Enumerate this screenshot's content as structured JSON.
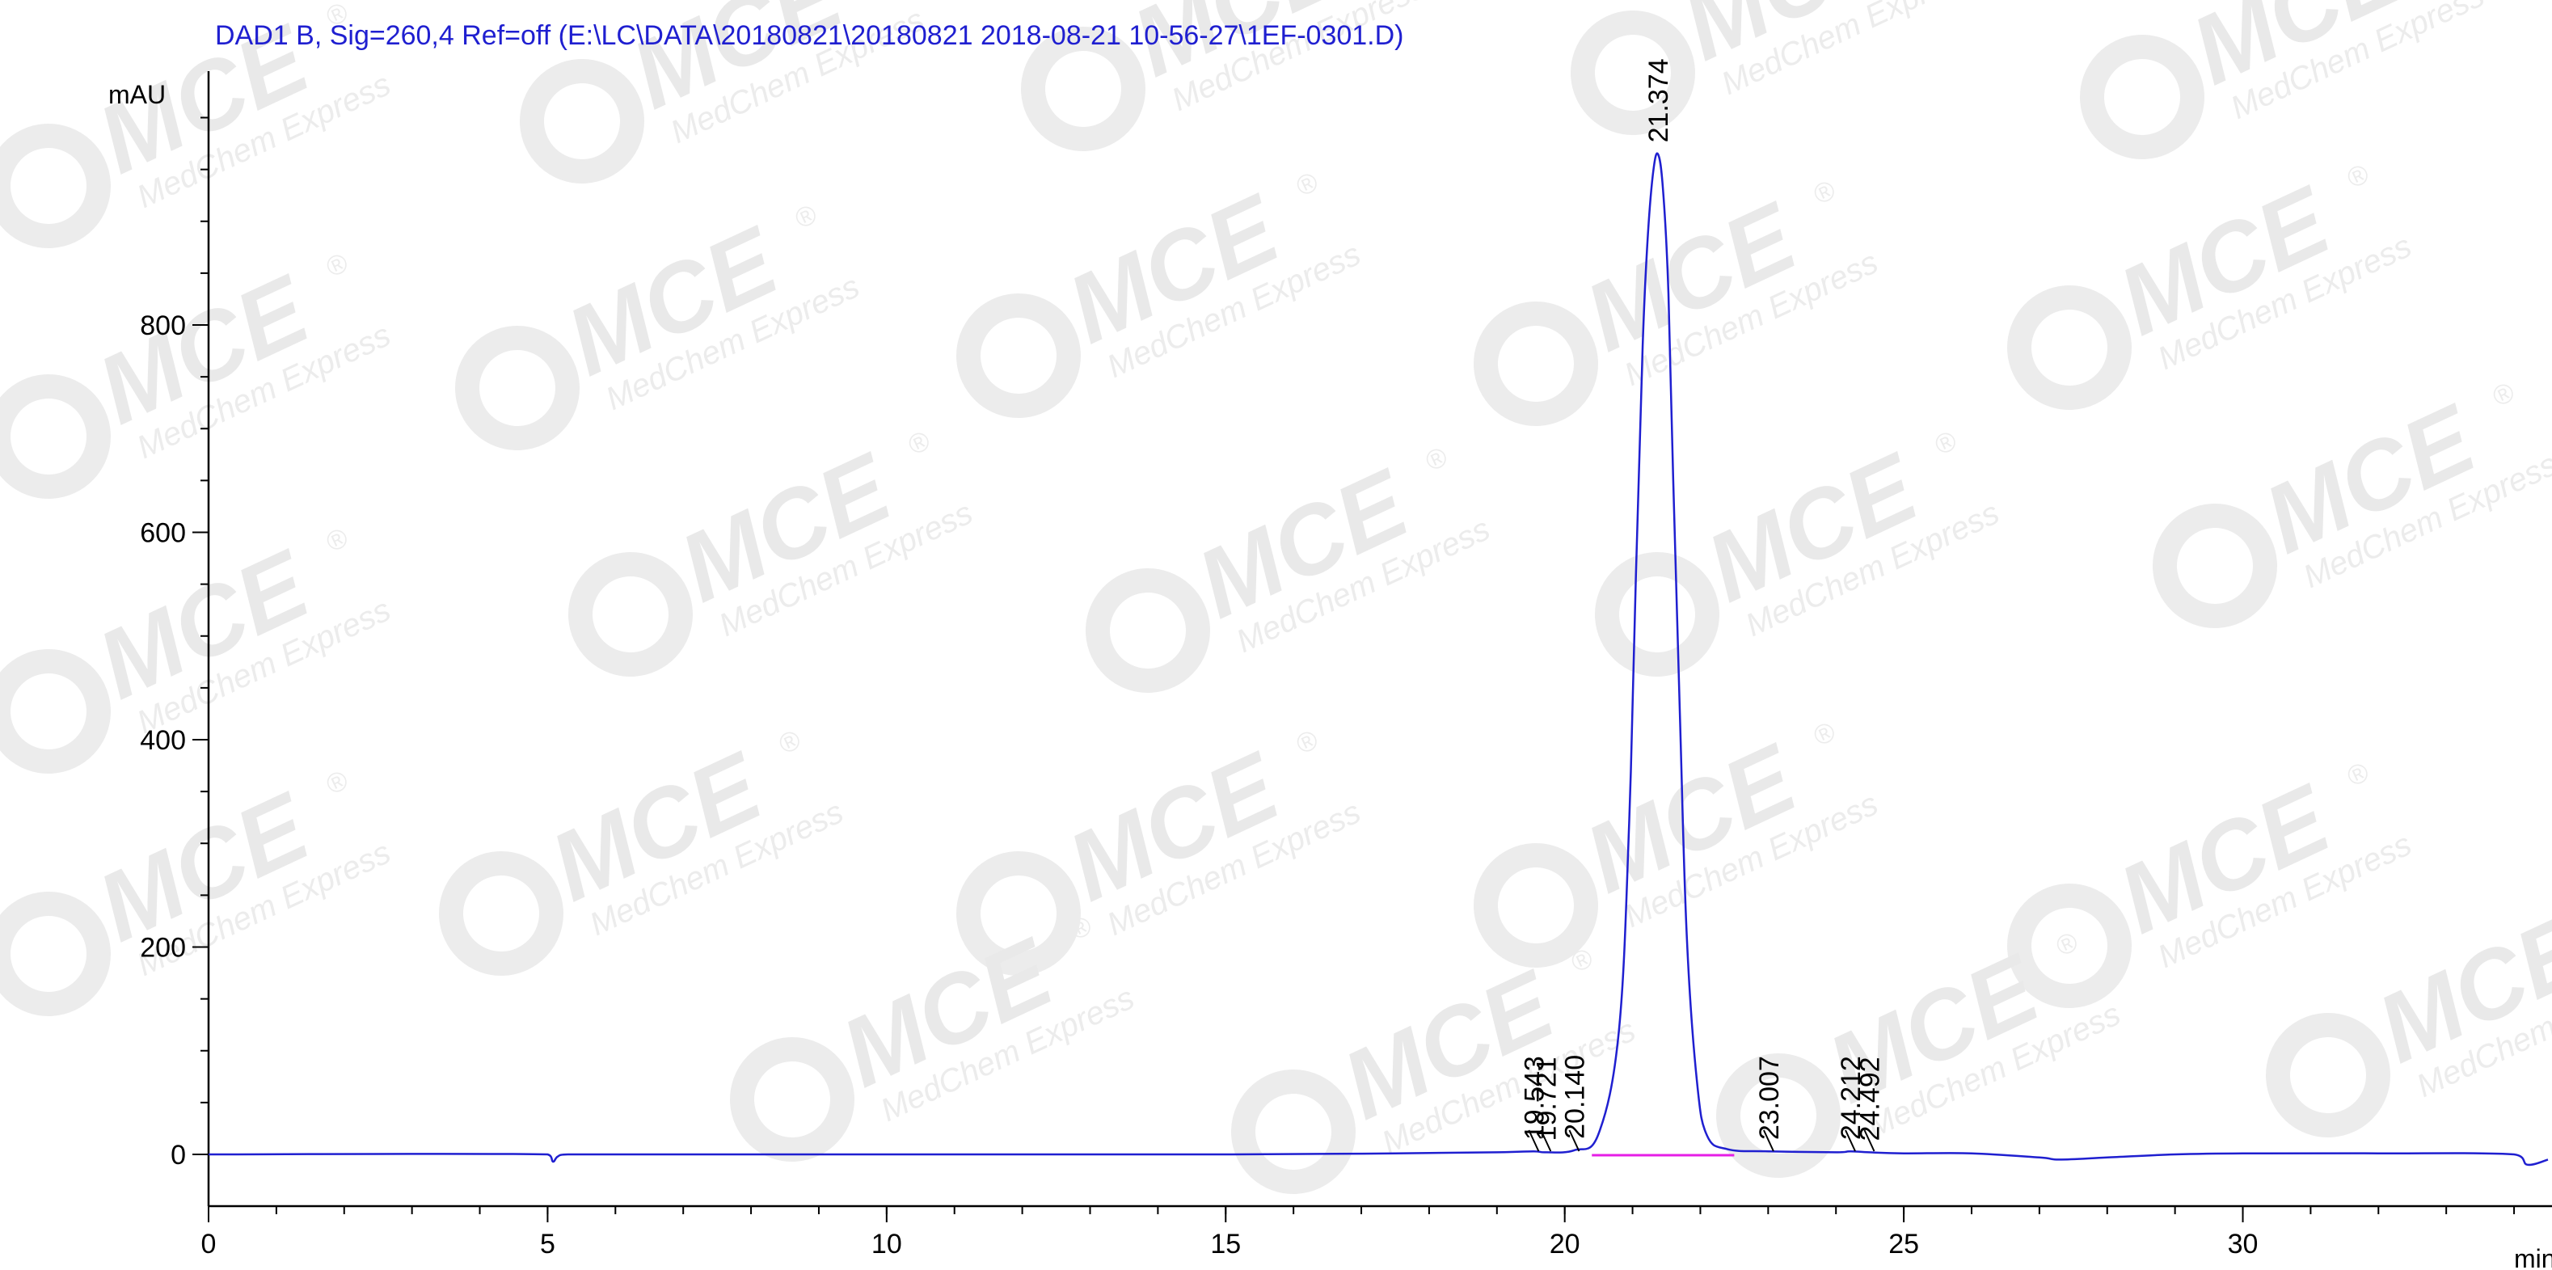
{
  "chart_data": {
    "type": "line",
    "title": "DAD1 B, Sig=260,4 Ref=off (E:\\LC\\DATA\\20180821\\20180821 2018-08-21 10-56-27\\1EF-0301.D)",
    "xlabel": "min",
    "ylabel": "mAU",
    "xlim": [
      0,
      34.5
    ],
    "ylim": [
      -50,
      1010
    ],
    "x_ticks": [
      0,
      5,
      10,
      15,
      20,
      25,
      30
    ],
    "x_tick_labels": [
      "0",
      "5",
      "10",
      "15",
      "20",
      "25",
      "30"
    ],
    "x_minor_step": 1,
    "y_ticks": [
      0,
      200,
      400,
      600,
      800
    ],
    "y_tick_labels": [
      "0",
      "200",
      "400",
      "600",
      "800"
    ],
    "y_minor_step": 50,
    "grid": false,
    "series": [
      {
        "color": "#1f1fd0",
        "x": [
          0,
          5.0,
          5.08,
          5.15,
          5.3,
          10,
          15,
          17.5,
          19.0,
          19.54,
          19.72,
          20.14,
          20.5,
          20.8,
          20.95,
          21.05,
          21.15,
          21.22,
          21.3,
          21.374,
          21.45,
          21.53,
          21.6,
          21.7,
          21.8,
          21.95,
          22.1,
          22.4,
          23.007,
          24.0,
          24.212,
          24.492,
          25.0,
          26.0,
          27.0,
          27.3,
          28.0,
          29.0,
          30.0,
          32.0,
          34.0,
          34.2,
          34.5
        ],
        "y": [
          0,
          0,
          -7,
          -2,
          0,
          0,
          0,
          1,
          2,
          3,
          2,
          4,
          20,
          120,
          320,
          560,
          780,
          880,
          945,
          965,
          930,
          830,
          650,
          420,
          210,
          70,
          18,
          5,
          3,
          2,
          3,
          2,
          1,
          1,
          -3,
          -5,
          -3,
          0,
          1,
          1,
          0,
          -10,
          -5
        ]
      }
    ],
    "peaks": [
      {
        "rt": 19.543,
        "label": "19.543"
      },
      {
        "rt": 19.721,
        "label": "19.721"
      },
      {
        "rt": 20.14,
        "label": "20.140"
      },
      {
        "rt": 21.374,
        "label": "21.374"
      },
      {
        "rt": 23.007,
        "label": "23.007"
      },
      {
        "rt": 24.212,
        "label": "24.212"
      },
      {
        "rt": 24.492,
        "label": "24.492"
      }
    ],
    "integration_baseline": {
      "color": "#e61ee6",
      "x_start": 20.4,
      "x_end": 22.5,
      "y": 0
    }
  },
  "watermark": {
    "brand": "MCE",
    "tagline": "MedChem Express",
    "registered": "®"
  }
}
